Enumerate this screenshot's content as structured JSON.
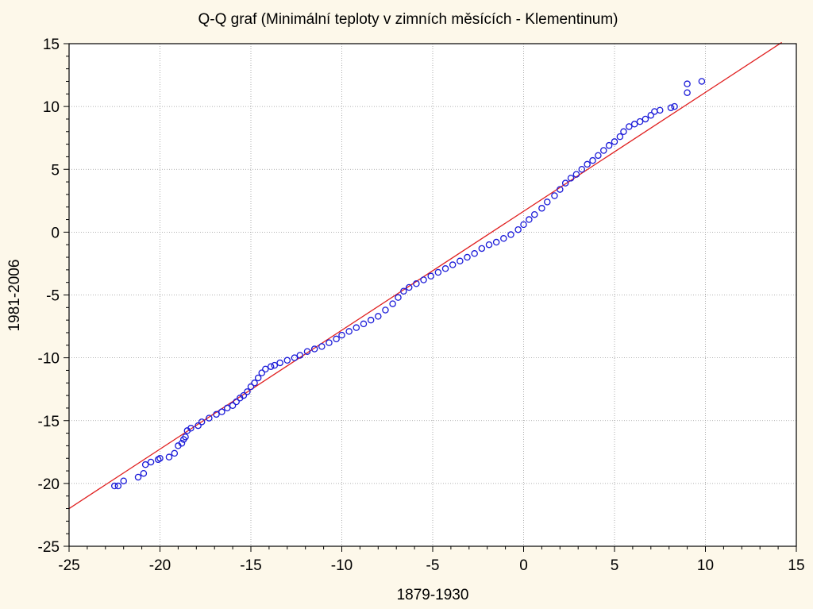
{
  "chart_data": {
    "type": "scatter",
    "title": "Q-Q graf (Minimální teploty v zimních měsících - Klementinum)",
    "xlabel": "1879-1930",
    "ylabel": "1981-2006",
    "xlim": [
      -25,
      15
    ],
    "ylim": [
      -25,
      15
    ],
    "xticks": [
      -25,
      -20,
      -15,
      -10,
      -5,
      0,
      5,
      10,
      15
    ],
    "yticks": [
      -25,
      -20,
      -15,
      -10,
      -5,
      0,
      5,
      10,
      15
    ],
    "x_tick_labels": [
      "-25",
      "-20",
      "-15",
      "-10",
      "-5",
      "0",
      "5",
      "10",
      "15"
    ],
    "y_tick_labels": [
      "-25",
      "-20",
      "-15",
      "-10",
      "-5",
      "0",
      "5",
      "10",
      "15"
    ],
    "grid": true,
    "colors": {
      "points": "#1a1ad8",
      "line": "#e02020",
      "background": "#fdf8ea",
      "plot_area": "#ffffff"
    },
    "reference_line": {
      "x": [
        -25,
        14.2
      ],
      "y": [
        -22.0,
        15.1
      ]
    },
    "series": [
      {
        "values_xy": [
          [
            -22.5,
            -20.2
          ],
          [
            -22.3,
            -20.2
          ],
          [
            -22.0,
            -19.8
          ],
          [
            -21.2,
            -19.5
          ],
          [
            -20.9,
            -19.2
          ],
          [
            -20.8,
            -18.5
          ],
          [
            -20.5,
            -18.3
          ],
          [
            -20.1,
            -18.1
          ],
          [
            -20.0,
            -18.0
          ],
          [
            -19.5,
            -17.9
          ],
          [
            -19.2,
            -17.6
          ],
          [
            -19.0,
            -17.0
          ],
          [
            -18.8,
            -16.8
          ],
          [
            -18.7,
            -16.5
          ],
          [
            -18.6,
            -16.3
          ],
          [
            -18.5,
            -15.8
          ],
          [
            -18.3,
            -15.6
          ],
          [
            -17.9,
            -15.4
          ],
          [
            -17.7,
            -15.1
          ],
          [
            -17.3,
            -14.8
          ],
          [
            -16.9,
            -14.5
          ],
          [
            -16.6,
            -14.3
          ],
          [
            -16.3,
            -14.0
          ],
          [
            -16.0,
            -13.8
          ],
          [
            -15.8,
            -13.5
          ],
          [
            -15.6,
            -13.2
          ],
          [
            -15.4,
            -13.0
          ],
          [
            -15.2,
            -12.7
          ],
          [
            -15.0,
            -12.3
          ],
          [
            -14.8,
            -12.0
          ],
          [
            -14.6,
            -11.6
          ],
          [
            -14.4,
            -11.2
          ],
          [
            -14.2,
            -10.9
          ],
          [
            -13.9,
            -10.7
          ],
          [
            -13.7,
            -10.6
          ],
          [
            -13.4,
            -10.4
          ],
          [
            -13.0,
            -10.2
          ],
          [
            -12.6,
            -10.0
          ],
          [
            -12.3,
            -9.8
          ],
          [
            -11.9,
            -9.5
          ],
          [
            -11.5,
            -9.3
          ],
          [
            -11.1,
            -9.1
          ],
          [
            -10.7,
            -8.8
          ],
          [
            -10.3,
            -8.5
          ],
          [
            -10.0,
            -8.2
          ],
          [
            -9.6,
            -7.9
          ],
          [
            -9.2,
            -7.6
          ],
          [
            -8.8,
            -7.3
          ],
          [
            -8.4,
            -7.0
          ],
          [
            -8.0,
            -6.7
          ],
          [
            -7.6,
            -6.2
          ],
          [
            -7.2,
            -5.7
          ],
          [
            -6.9,
            -5.2
          ],
          [
            -6.6,
            -4.7
          ],
          [
            -6.3,
            -4.4
          ],
          [
            -5.9,
            -4.1
          ],
          [
            -5.5,
            -3.8
          ],
          [
            -5.1,
            -3.5
          ],
          [
            -4.7,
            -3.2
          ],
          [
            -4.3,
            -2.9
          ],
          [
            -3.9,
            -2.6
          ],
          [
            -3.5,
            -2.3
          ],
          [
            -3.1,
            -2.0
          ],
          [
            -2.7,
            -1.7
          ],
          [
            -2.3,
            -1.3
          ],
          [
            -1.9,
            -1.0
          ],
          [
            -1.5,
            -0.8
          ],
          [
            -1.1,
            -0.5
          ],
          [
            -0.7,
            -0.2
          ],
          [
            -0.3,
            0.2
          ],
          [
            0.0,
            0.6
          ],
          [
            0.3,
            1.0
          ],
          [
            0.6,
            1.4
          ],
          [
            1.0,
            1.9
          ],
          [
            1.3,
            2.4
          ],
          [
            1.7,
            2.9
          ],
          [
            2.0,
            3.4
          ],
          [
            2.3,
            3.9
          ],
          [
            2.6,
            4.3
          ],
          [
            2.9,
            4.6
          ],
          [
            3.2,
            5.0
          ],
          [
            3.5,
            5.4
          ],
          [
            3.8,
            5.7
          ],
          [
            4.1,
            6.1
          ],
          [
            4.4,
            6.5
          ],
          [
            4.7,
            6.9
          ],
          [
            5.0,
            7.2
          ],
          [
            5.3,
            7.6
          ],
          [
            5.5,
            8.0
          ],
          [
            5.8,
            8.4
          ],
          [
            6.1,
            8.6
          ],
          [
            6.4,
            8.8
          ],
          [
            6.7,
            9.0
          ],
          [
            7.0,
            9.3
          ],
          [
            7.2,
            9.6
          ],
          [
            7.5,
            9.7
          ],
          [
            8.1,
            9.9
          ],
          [
            8.3,
            10.0
          ],
          [
            9.0,
            11.1
          ],
          [
            9.0,
            11.8
          ],
          [
            9.8,
            12.0
          ]
        ]
      }
    ]
  }
}
